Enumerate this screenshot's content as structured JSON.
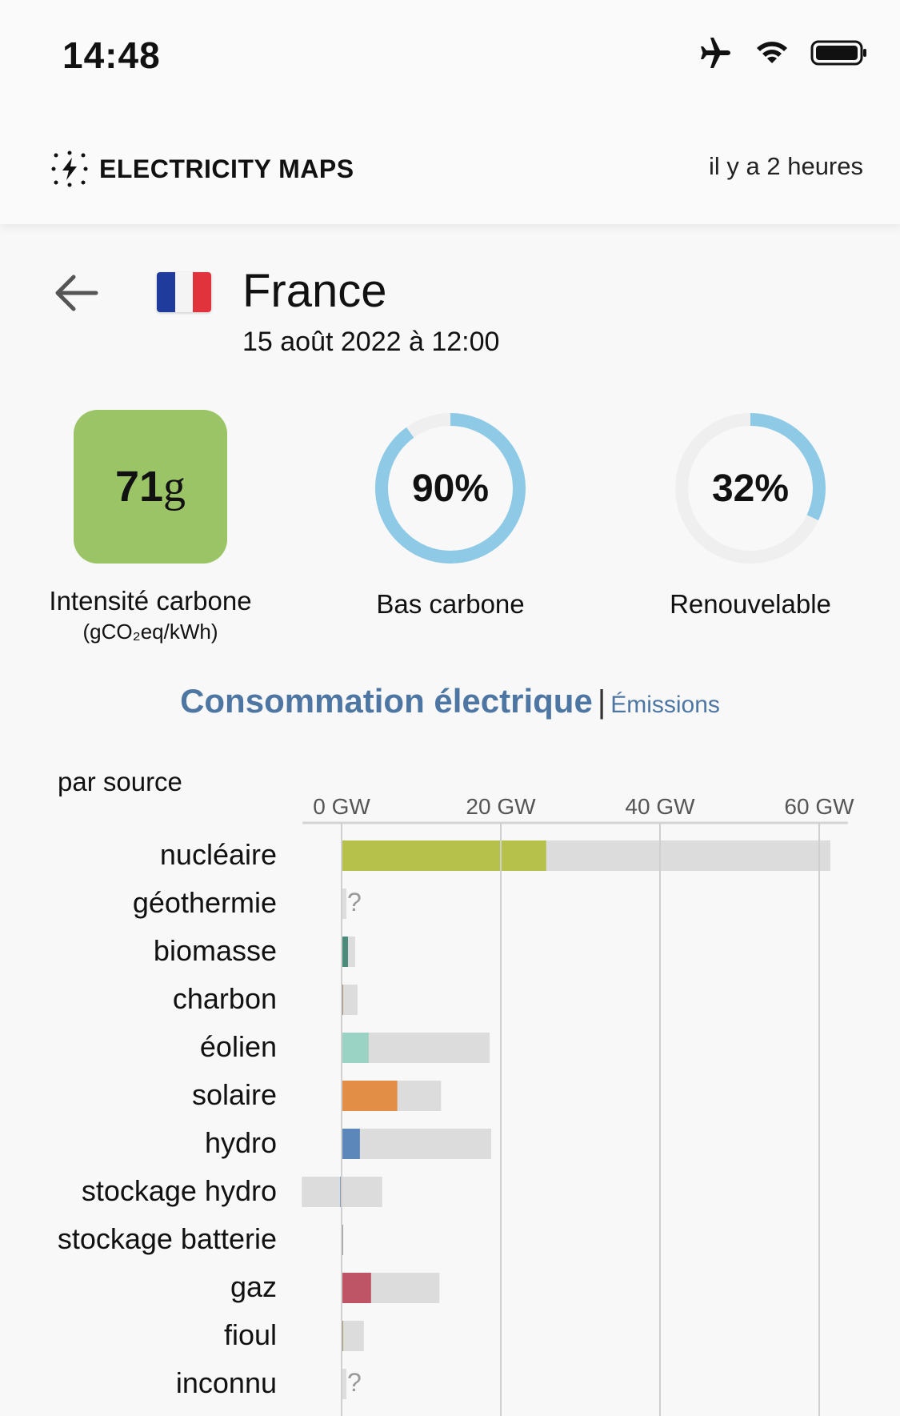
{
  "status_bar": {
    "time": "14:48",
    "icons": [
      "airplane-icon",
      "wifi-icon",
      "battery-icon"
    ]
  },
  "header": {
    "brand": "ELECTRICITY MAPS",
    "updated": "il y a 2 heures"
  },
  "zone": {
    "name": "France",
    "date": "15 août 2022 à 12:00"
  },
  "metrics": {
    "intensity": {
      "value": "71",
      "unit": "g",
      "label": "Intensité carbone",
      "unit_label": "(gCO₂eq/kWh)",
      "color": "#9bc467"
    },
    "low_carbon": {
      "value": "90%",
      "fraction": 0.9,
      "label": "Bas carbone"
    },
    "renewable": {
      "value": "32%",
      "fraction": 0.32,
      "label": "Renouvelable"
    }
  },
  "tabs": {
    "active": "Consommation électrique",
    "inactive": "Émissions"
  },
  "chart_section": {
    "subtitle": "par source"
  },
  "chart_data": {
    "type": "bar",
    "orientation": "horizontal",
    "xlim": [
      -5,
      64
    ],
    "ticks": [
      0,
      20,
      40,
      60
    ],
    "tick_labels": [
      "0 GW",
      "20 GW",
      "40 GW",
      "60 GW"
    ],
    "categories": [
      "nucléaire",
      "géothermie",
      "biomasse",
      "charbon",
      "éolien",
      "solaire",
      "hydro",
      "stockage hydro",
      "stockage batterie",
      "gaz",
      "fioul",
      "inconnu"
    ],
    "series": [
      {
        "values": [
          25.7,
          null,
          0.8,
          0.15,
          3.4,
          7.0,
          2.3,
          -0.15,
          0.0,
          3.7,
          0.2,
          null
        ]
      },
      {
        "values": [
          61.4,
          null,
          1.7,
          2.0,
          18.6,
          12.5,
          18.8,
          5.1,
          0.0,
          12.3,
          2.8,
          null
        ]
      },
      {
        "values": [
          null,
          null,
          null,
          null,
          null,
          null,
          null,
          -5.0,
          null,
          null,
          null,
          null
        ]
      }
    ],
    "colors": [
      "#b5c14a",
      "#cccccc",
      "#4a8a78",
      "#a5896d",
      "#9ad2c3",
      "#e28e46",
      "#5b87bb",
      "#1d5ea8",
      "#999999",
      "#bd5567",
      "#a09470",
      "#cccccc"
    ],
    "unknown_marker": "?"
  }
}
